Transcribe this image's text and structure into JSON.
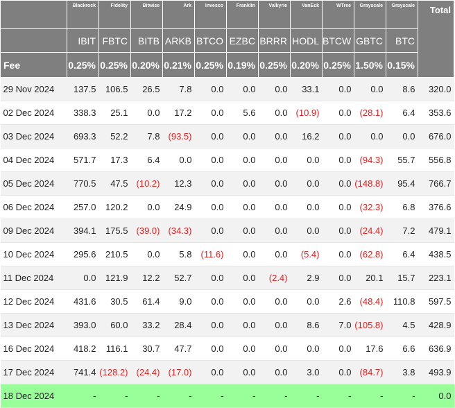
{
  "issuers": [
    "Blackrock",
    "Fidelity",
    "Bitwise",
    "Ark",
    "Invesco",
    "Franklin",
    "Valkyrie",
    "VanEck",
    "WTree",
    "Grayscale",
    "Grayscale"
  ],
  "total_label": "Total",
  "tickers": [
    "IBIT",
    "FBTC",
    "BITB",
    "ARKB",
    "BTCO",
    "EZBC",
    "BRRR",
    "HODL",
    "BTCW",
    "GBTC",
    "BTC"
  ],
  "fee_label": "Fee",
  "fees": [
    "0.25%",
    "0.25%",
    "0.20%",
    "0.21%",
    "0.25%",
    "0.19%",
    "0.25%",
    "0.20%",
    "0.25%",
    "1.50%",
    "0.15%"
  ],
  "rows": [
    {
      "date": "29 Nov 2024",
      "v": [
        "137.5",
        "106.5",
        "26.5",
        "7.8",
        "0.0",
        "0.0",
        "0.0",
        "33.1",
        "0.0",
        "0.0",
        "8.6"
      ],
      "total": "320.0"
    },
    {
      "date": "02 Dec 2024",
      "v": [
        "338.3",
        "25.1",
        "0.0",
        "17.2",
        "0.0",
        "5.6",
        "0.0",
        "(10.9)",
        "0.0",
        "(28.1)",
        "6.4"
      ],
      "total": "353.6"
    },
    {
      "date": "03 Dec 2024",
      "v": [
        "693.3",
        "52.2",
        "7.8",
        "(93.5)",
        "0.0",
        "0.0",
        "0.0",
        "16.2",
        "0.0",
        "0.0",
        "0.0"
      ],
      "total": "676.0"
    },
    {
      "date": "04 Dec 2024",
      "v": [
        "571.7",
        "17.3",
        "6.4",
        "0.0",
        "0.0",
        "0.0",
        "0.0",
        "0.0",
        "0.0",
        "(94.3)",
        "55.7"
      ],
      "total": "556.8"
    },
    {
      "date": "05 Dec 2024",
      "v": [
        "770.5",
        "47.5",
        "(10.2)",
        "12.3",
        "0.0",
        "0.0",
        "0.0",
        "0.0",
        "0.0",
        "(148.8)",
        "95.4"
      ],
      "total": "766.7"
    },
    {
      "date": "06 Dec 2024",
      "v": [
        "257.0",
        "120.2",
        "0.0",
        "24.9",
        "0.0",
        "0.0",
        "0.0",
        "0.0",
        "0.0",
        "(32.3)",
        "6.8"
      ],
      "total": "376.6"
    },
    {
      "date": "09 Dec 2024",
      "v": [
        "394.1",
        "175.5",
        "(39.0)",
        "(34.3)",
        "0.0",
        "0.0",
        "0.0",
        "0.0",
        "0.0",
        "(24.4)",
        "7.2"
      ],
      "total": "479.1"
    },
    {
      "date": "10 Dec 2024",
      "v": [
        "295.6",
        "210.5",
        "0.0",
        "5.8",
        "(11.6)",
        "0.0",
        "0.0",
        "(5.4)",
        "0.0",
        "(62.8)",
        "6.4"
      ],
      "total": "438.5"
    },
    {
      "date": "11 Dec 2024",
      "v": [
        "0.0",
        "121.9",
        "12.2",
        "52.7",
        "0.0",
        "0.0",
        "(2.4)",
        "2.9",
        "0.0",
        "20.1",
        "15.7"
      ],
      "total": "223.1"
    },
    {
      "date": "12 Dec 2024",
      "v": [
        "431.6",
        "30.5",
        "61.4",
        "9.0",
        "0.0",
        "0.0",
        "0.0",
        "0.0",
        "2.6",
        "(48.4)",
        "110.8"
      ],
      "total": "597.5"
    },
    {
      "date": "13 Dec 2024",
      "v": [
        "393.0",
        "60.0",
        "33.2",
        "28.4",
        "0.0",
        "0.0",
        "0.0",
        "8.6",
        "7.0",
        "(105.8)",
        "4.5"
      ],
      "total": "428.9"
    },
    {
      "date": "16 Dec 2024",
      "v": [
        "418.2",
        "116.1",
        "30.7",
        "47.7",
        "0.0",
        "0.0",
        "0.0",
        "0.0",
        "0.0",
        "17.6",
        "6.6"
      ],
      "total": "636.9"
    },
    {
      "date": "17 Dec 2024",
      "v": [
        "741.4",
        "(128.2)",
        "(24.4)",
        "(17.0)",
        "0.0",
        "0.0",
        "0.0",
        "3.0",
        "0.0",
        "(84.7)",
        "3.8"
      ],
      "total": "493.9"
    },
    {
      "date": "18 Dec 2024",
      "v": [
        "-",
        "-",
        "-",
        "-",
        "-",
        "-",
        "-",
        "-",
        "-",
        "-",
        "-"
      ],
      "total": "0.0",
      "highlight": true
    }
  ],
  "colors": {
    "header_bg": "#7f7f7f",
    "negative": "#e02020",
    "highlight_row": "#99ff99"
  }
}
